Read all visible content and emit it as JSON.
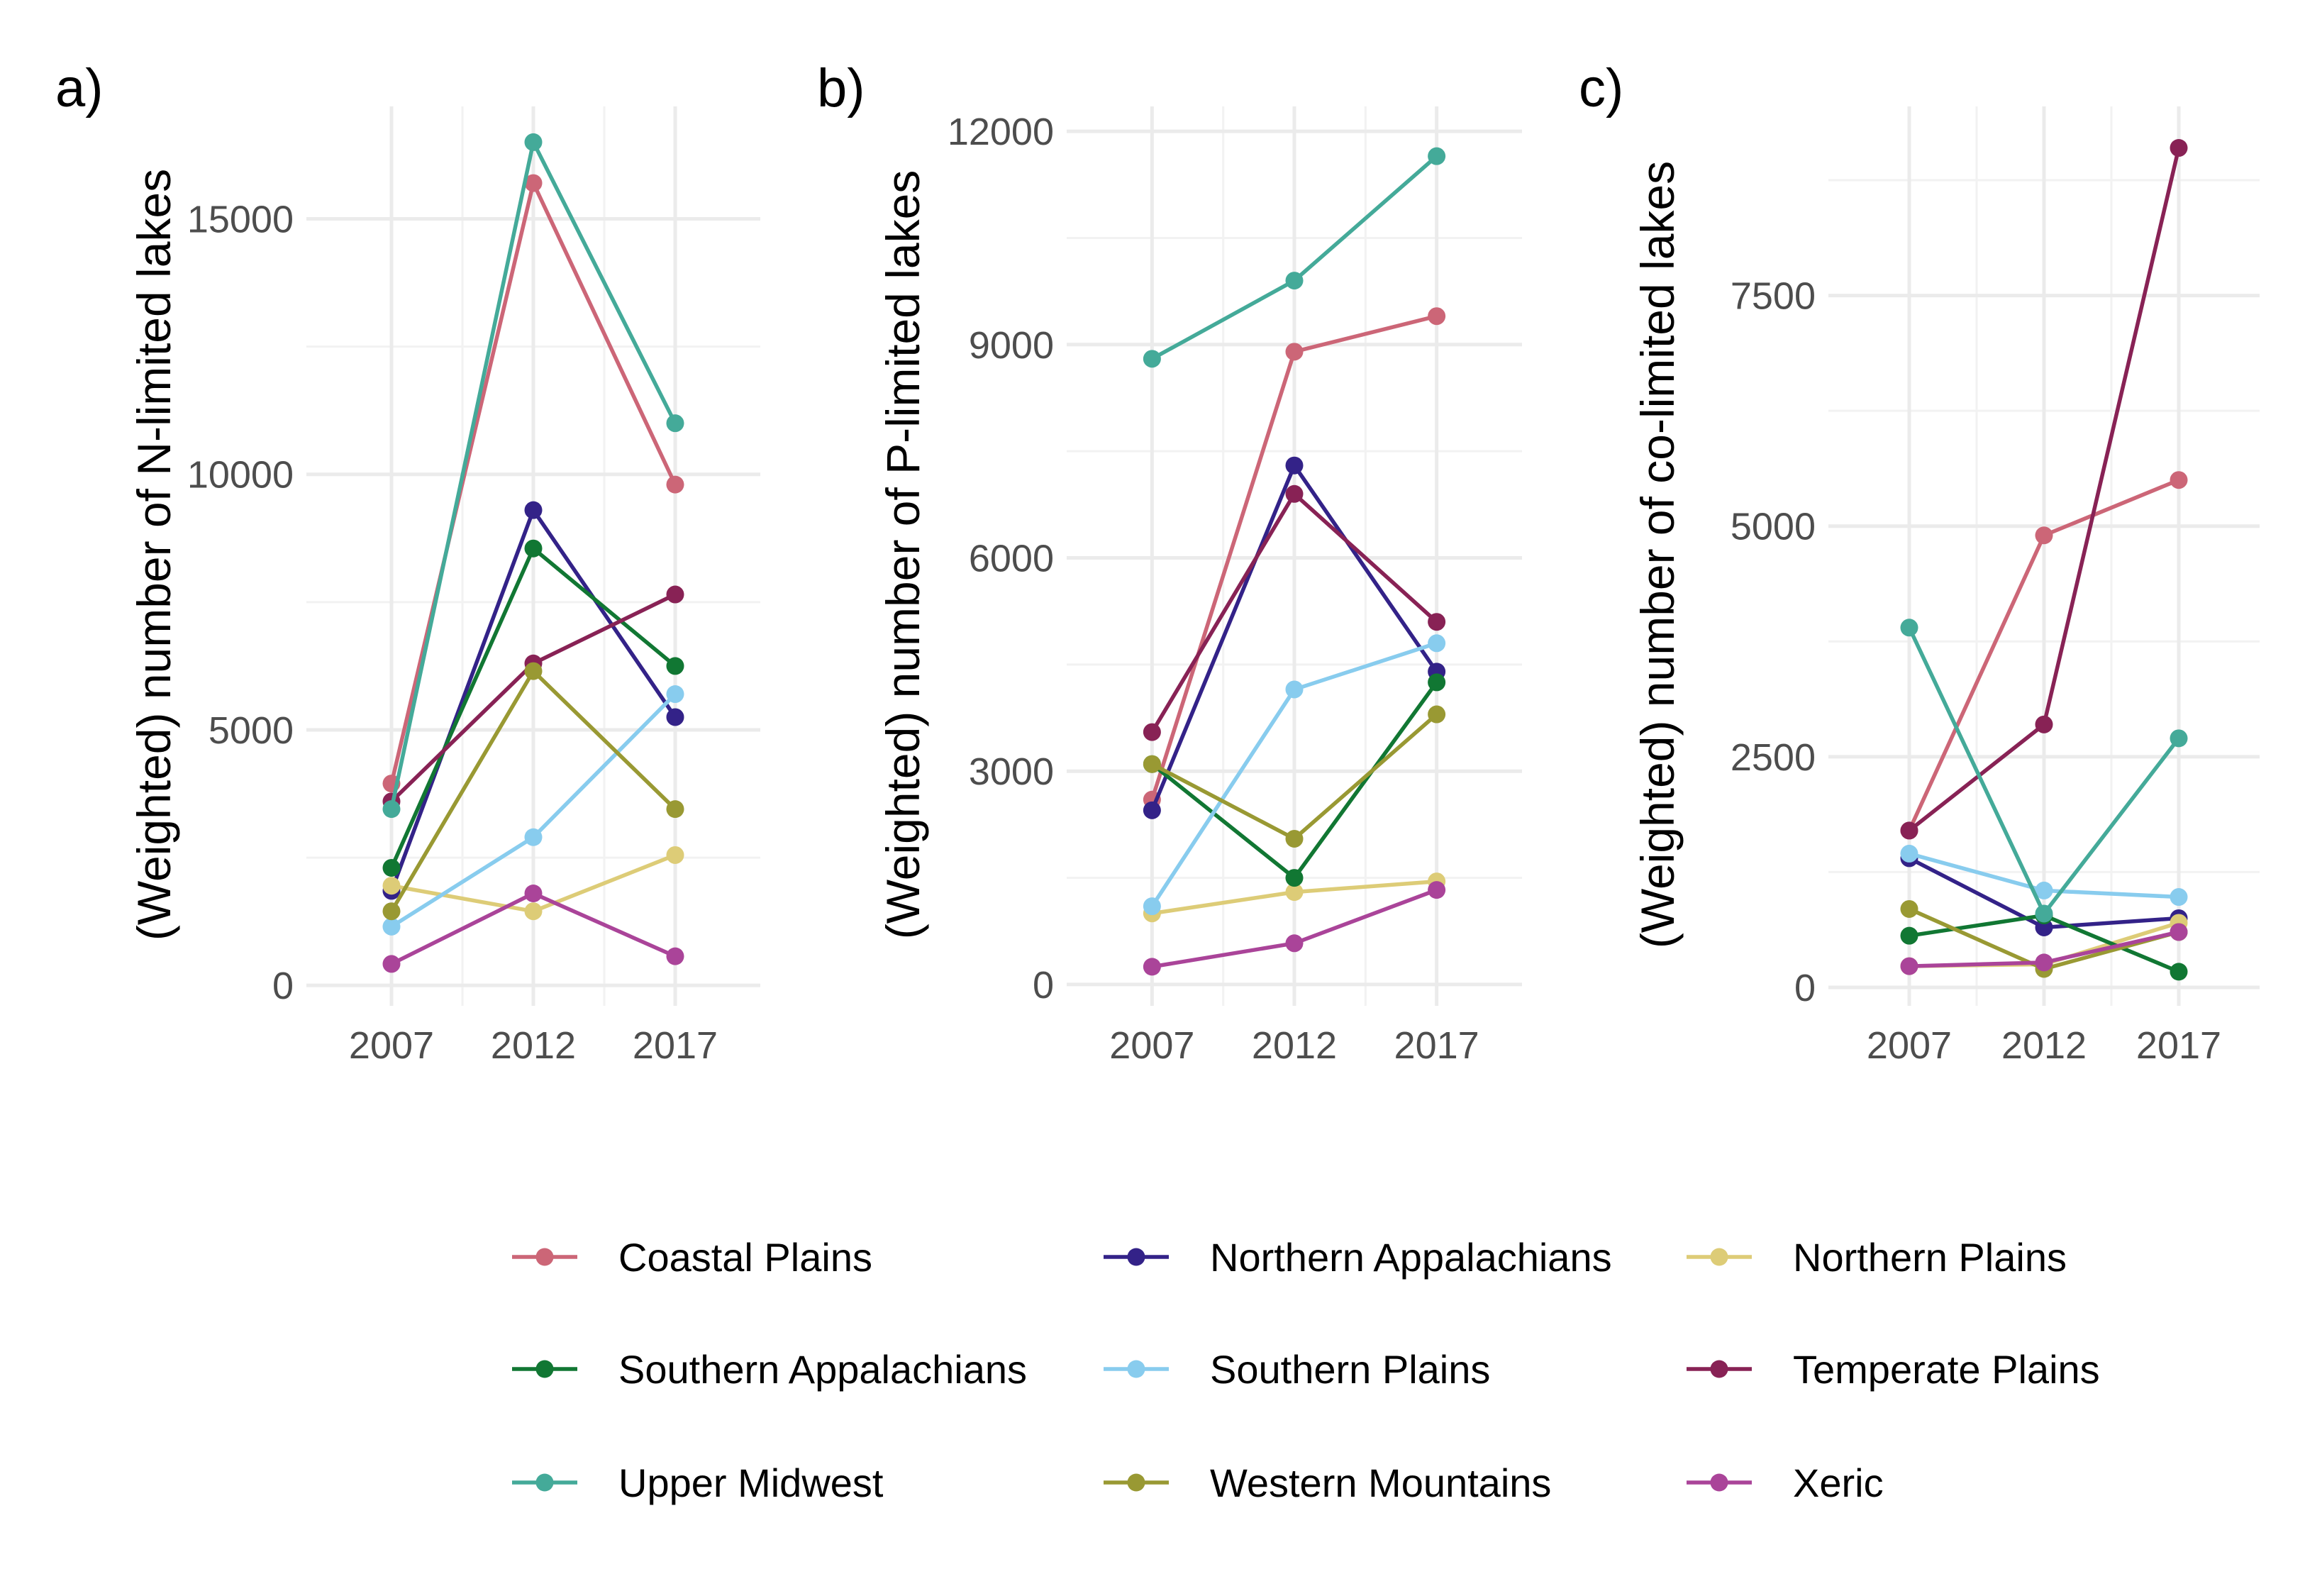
{
  "chart_data": [
    {
      "type": "line",
      "tag": "a)",
      "title": "",
      "xlabel": "",
      "ylabel": "(Weighted) number of N-limited lakes",
      "x": [
        2007,
        2012,
        2017
      ],
      "xlim": [
        2004,
        2020
      ],
      "ylim": [
        -400,
        17200
      ],
      "yticks": [
        0,
        5000,
        10000,
        15000
      ],
      "yminor": [
        2500,
        7500,
        12500
      ],
      "grid": true,
      "series": [
        {
          "name": "Coastal Plains",
          "values": [
            3950,
            15700,
            9800
          ]
        },
        {
          "name": "Northern Appalachians",
          "values": [
            1850,
            9300,
            5250
          ]
        },
        {
          "name": "Northern Plains",
          "values": [
            1950,
            1450,
            2550
          ]
        },
        {
          "name": "Southern Appalachians",
          "values": [
            2300,
            8550,
            6250
          ]
        },
        {
          "name": "Southern Plains",
          "values": [
            1150,
            2900,
            5700
          ]
        },
        {
          "name": "Temperate Plains",
          "values": [
            3600,
            6300,
            7650
          ]
        },
        {
          "name": "Upper Midwest",
          "values": [
            3450,
            16500,
            11000
          ]
        },
        {
          "name": "Western Mountains",
          "values": [
            1450,
            6150,
            3450
          ]
        },
        {
          "name": "Xeric",
          "values": [
            420,
            1800,
            570
          ]
        }
      ]
    },
    {
      "type": "line",
      "tag": "b)",
      "title": "",
      "xlabel": "",
      "ylabel": "(Weighted) number of P-limited lakes",
      "x": [
        2007,
        2012,
        2017
      ],
      "xlim": [
        2004,
        2020
      ],
      "ylim": [
        -300,
        12350
      ],
      "yticks": [
        0,
        3000,
        6000,
        9000,
        12000
      ],
      "yminor": [
        1500,
        4500,
        7500,
        10500
      ],
      "grid": true,
      "series": [
        {
          "name": "Coastal Plains",
          "values": [
            2600,
            8900,
            9400
          ]
        },
        {
          "name": "Northern Appalachians",
          "values": [
            2450,
            7300,
            4400
          ]
        },
        {
          "name": "Northern Plains",
          "values": [
            1000,
            1300,
            1450
          ]
        },
        {
          "name": "Southern Appalachians",
          "values": [
            3100,
            1500,
            4250
          ]
        },
        {
          "name": "Southern Plains",
          "values": [
            1100,
            4150,
            4800
          ]
        },
        {
          "name": "Temperate Plains",
          "values": [
            3550,
            6900,
            5100
          ]
        },
        {
          "name": "Upper Midwest",
          "values": [
            8800,
            9900,
            11650
          ]
        },
        {
          "name": "Western Mountains",
          "values": [
            3100,
            2050,
            3800
          ]
        },
        {
          "name": "Xeric",
          "values": [
            250,
            580,
            1330
          ]
        }
      ]
    },
    {
      "type": "line",
      "tag": "c)",
      "title": "",
      "xlabel": "",
      "ylabel": "(Weighted) number of co-limited lakes",
      "x": [
        2007,
        2012,
        2017
      ],
      "xlim": [
        2004,
        2020
      ],
      "ylim": [
        -200,
        9550
      ],
      "yticks": [
        0,
        2500,
        5000,
        7500
      ],
      "yminor": [
        1250,
        3750,
        6250,
        8750
      ],
      "grid": true,
      "series": [
        {
          "name": "Coastal Plains",
          "values": [
            1700,
            4900,
            5500
          ]
        },
        {
          "name": "Northern Appalachians",
          "values": [
            1400,
            650,
            750
          ]
        },
        {
          "name": "Northern Plains",
          "values": [
            230,
            250,
            700
          ]
        },
        {
          "name": "Southern Appalachians",
          "values": [
            560,
            780,
            170
          ]
        },
        {
          "name": "Southern Plains",
          "values": [
            1450,
            1050,
            980
          ]
        },
        {
          "name": "Temperate Plains",
          "values": [
            1700,
            2850,
            9100
          ]
        },
        {
          "name": "Upper Midwest",
          "values": [
            3900,
            800,
            2700
          ]
        },
        {
          "name": "Western Mountains",
          "values": [
            850,
            200,
            600
          ]
        },
        {
          "name": "Xeric",
          "values": [
            230,
            270,
            600
          ]
        }
      ]
    }
  ],
  "legend": {
    "placement": "bottom",
    "items": [
      {
        "name": "Coastal Plains",
        "color": "#CC6677"
      },
      {
        "name": "Northern Appalachians",
        "color": "#332288"
      },
      {
        "name": "Northern Plains",
        "color": "#DDCC77"
      },
      {
        "name": "Southern Appalachians",
        "color": "#117733"
      },
      {
        "name": "Southern Plains",
        "color": "#88CCEE"
      },
      {
        "name": "Temperate Plains",
        "color": "#882255"
      },
      {
        "name": "Upper Midwest",
        "color": "#44AA99"
      },
      {
        "name": "Western Mountains",
        "color": "#999933"
      },
      {
        "name": "Xeric",
        "color": "#AA4499"
      }
    ]
  }
}
